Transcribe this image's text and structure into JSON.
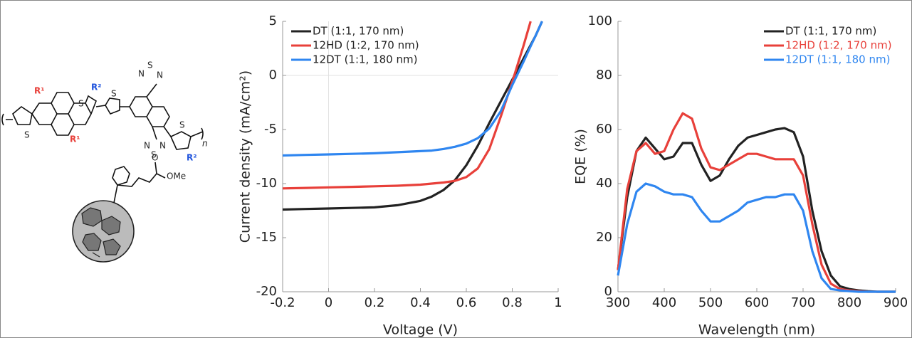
{
  "molecule_labels": [
    "R¹",
    "R²",
    "S",
    "S",
    "S",
    "N",
    "S",
    "N",
    "N",
    "S",
    "N",
    "S",
    "R¹",
    "R²",
    "n",
    "O",
    "OMe"
  ],
  "chart_data": [
    {
      "type": "line",
      "xlabel": "Voltage (V)",
      "ylabel": "Current density (mA/cm²)",
      "x": [
        -0.2,
        -0.1,
        0,
        0.1,
        0.2,
        0.3,
        0.4,
        0.45,
        0.5,
        0.55,
        0.6,
        0.65,
        0.7,
        0.75,
        0.8,
        0.85,
        0.88,
        0.9,
        0.93
      ],
      "xlim": [
        -0.2,
        1
      ],
      "xticks": [
        -0.2,
        0,
        0.2,
        0.4,
        0.6,
        0.8,
        1
      ],
      "ylim": [
        -20,
        5
      ],
      "yticks": [
        -20,
        -15,
        -10,
        -5,
        0,
        5
      ],
      "zero_lines": true,
      "legend": "upper left",
      "legend_text_colored": false,
      "series": [
        {
          "name": "DT (1:1, 170 nm)",
          "color": "#222222",
          "values": [
            -12.4,
            -12.35,
            -12.3,
            -12.25,
            -12.2,
            -12.0,
            -11.6,
            -11.2,
            -10.6,
            -9.7,
            -8.3,
            -6.5,
            -4.4,
            -2.4,
            -0.4,
            1.6,
            2.8,
            3.6,
            5.0
          ]
        },
        {
          "name": "12HD (1:2, 170 nm)",
          "color": "#e8403a",
          "values": [
            -10.45,
            -10.4,
            -10.35,
            -10.3,
            -10.25,
            -10.2,
            -10.1,
            -10.0,
            -9.9,
            -9.75,
            -9.4,
            -8.6,
            -6.8,
            -3.8,
            -0.6,
            2.8,
            5.0,
            null,
            null
          ]
        },
        {
          "name": "12DT (1:1, 180 nm)",
          "color": "#2f86f0",
          "values": [
            -7.4,
            -7.35,
            -7.3,
            -7.25,
            -7.2,
            -7.1,
            -7.0,
            -6.95,
            -6.8,
            -6.6,
            -6.3,
            -5.8,
            -4.9,
            -3.3,
            -0.9,
            1.3,
            2.7,
            3.6,
            5.0
          ]
        }
      ]
    },
    {
      "type": "line",
      "xlabel": "Wavelength (nm)",
      "ylabel": "EQE (%)",
      "x": [
        300,
        320,
        340,
        360,
        380,
        400,
        420,
        440,
        460,
        480,
        500,
        520,
        540,
        560,
        580,
        600,
        620,
        640,
        660,
        680,
        700,
        720,
        740,
        760,
        780,
        800,
        820,
        840,
        860,
        880,
        900
      ],
      "xlim": [
        300,
        900
      ],
      "xticks": [
        300,
        400,
        500,
        600,
        700,
        800,
        900
      ],
      "ylim": [
        0,
        100
      ],
      "yticks": [
        0,
        20,
        40,
        60,
        80,
        100
      ],
      "zero_lines": false,
      "legend": "upper right",
      "legend_text_colored": true,
      "series": [
        {
          "name": "DT (1:1, 170 nm)",
          "color": "#222222",
          "values": [
            8,
            35,
            52,
            57,
            53,
            49,
            50,
            55,
            55,
            47,
            41,
            43,
            49,
            54,
            57,
            58,
            59,
            60,
            60.5,
            59,
            50,
            30,
            15,
            6,
            2,
            1,
            0.5,
            0.2,
            0,
            0,
            0
          ]
        },
        {
          "name": "12HD (1:2, 170 nm)",
          "color": "#e8403a",
          "values": [
            8,
            38,
            52,
            55,
            51,
            52,
            60,
            66,
            64,
            53,
            46,
            45,
            47,
            49,
            51,
            51,
            50,
            49,
            49,
            49,
            43,
            25,
            10,
            3,
            1,
            0.5,
            0.2,
            0,
            0,
            0,
            0
          ]
        },
        {
          "name": "12DT (1:1, 180 nm)",
          "color": "#2f86f0",
          "values": [
            6,
            25,
            37,
            40,
            39,
            37,
            36,
            36,
            35,
            30,
            26,
            26,
            28,
            30,
            33,
            34,
            35,
            35,
            36,
            36,
            30,
            15,
            5,
            1,
            0.5,
            0.2,
            0,
            0,
            0,
            0,
            0
          ]
        }
      ]
    }
  ]
}
